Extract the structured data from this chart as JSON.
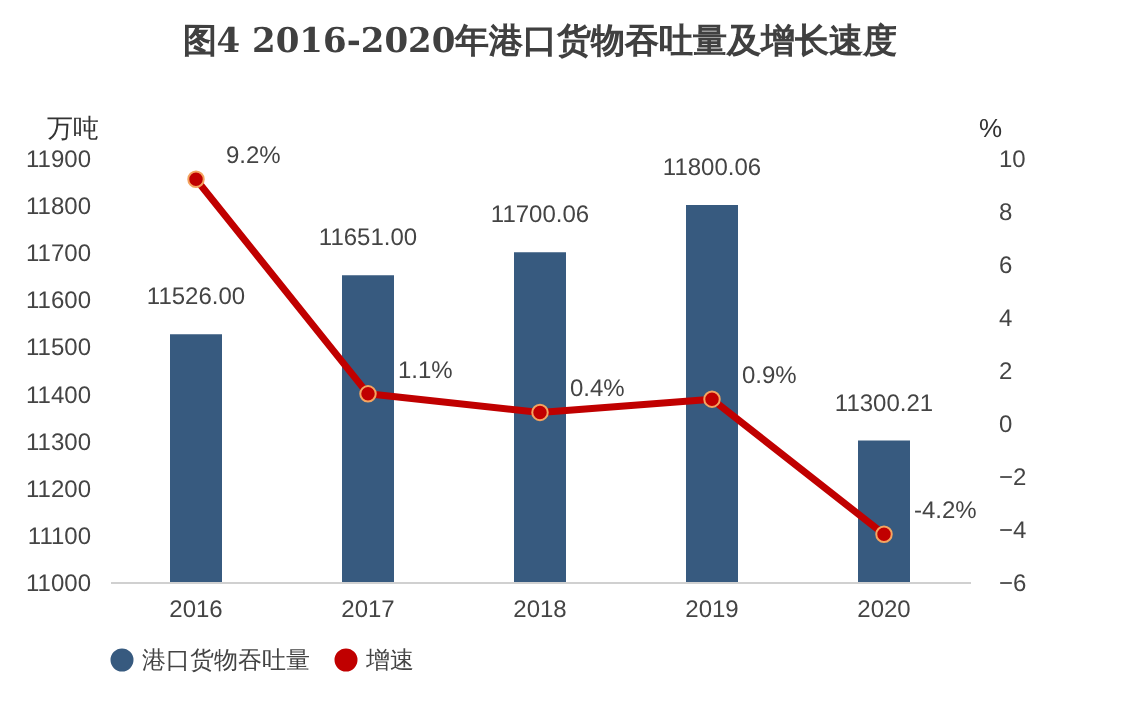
{
  "chart_data": {
    "type": "bar",
    "title": "图4  2016-2020年港口货物吞吐量及增长速度",
    "ylabel": "万吨",
    "y2label": "%",
    "categories": [
      "2016",
      "2017",
      "2018",
      "2019",
      "2020"
    ],
    "series": [
      {
        "name": "港口货物吞吐量",
        "color": "#375a7f",
        "values": [
          11526.0,
          11651.0,
          11700.06,
          11800.06,
          11300.21
        ],
        "value_labels": [
          "11526.00",
          "11651.00",
          "11700.06",
          "11800.06",
          "11300.21"
        ]
      },
      {
        "name": "增速",
        "type": "line",
        "axis": "y2",
        "color": "#c00000",
        "marker": "circle",
        "values": [
          9.2,
          1.1,
          0.4,
          0.9,
          -4.2
        ],
        "value_labels": [
          "9.2%",
          "1.1%",
          "0.4%",
          "0.9%",
          "-4.2%"
        ]
      }
    ],
    "ylim": [
      11000,
      11900
    ],
    "yticks": [
      11000,
      11100,
      11200,
      11300,
      11400,
      11500,
      11600,
      11700,
      11800,
      11900
    ],
    "y2lim": [
      -6,
      10
    ],
    "y2ticks": [
      -6,
      -4,
      -2,
      0,
      2,
      4,
      6,
      8,
      10
    ],
    "grid": false,
    "legend": "bottom"
  }
}
